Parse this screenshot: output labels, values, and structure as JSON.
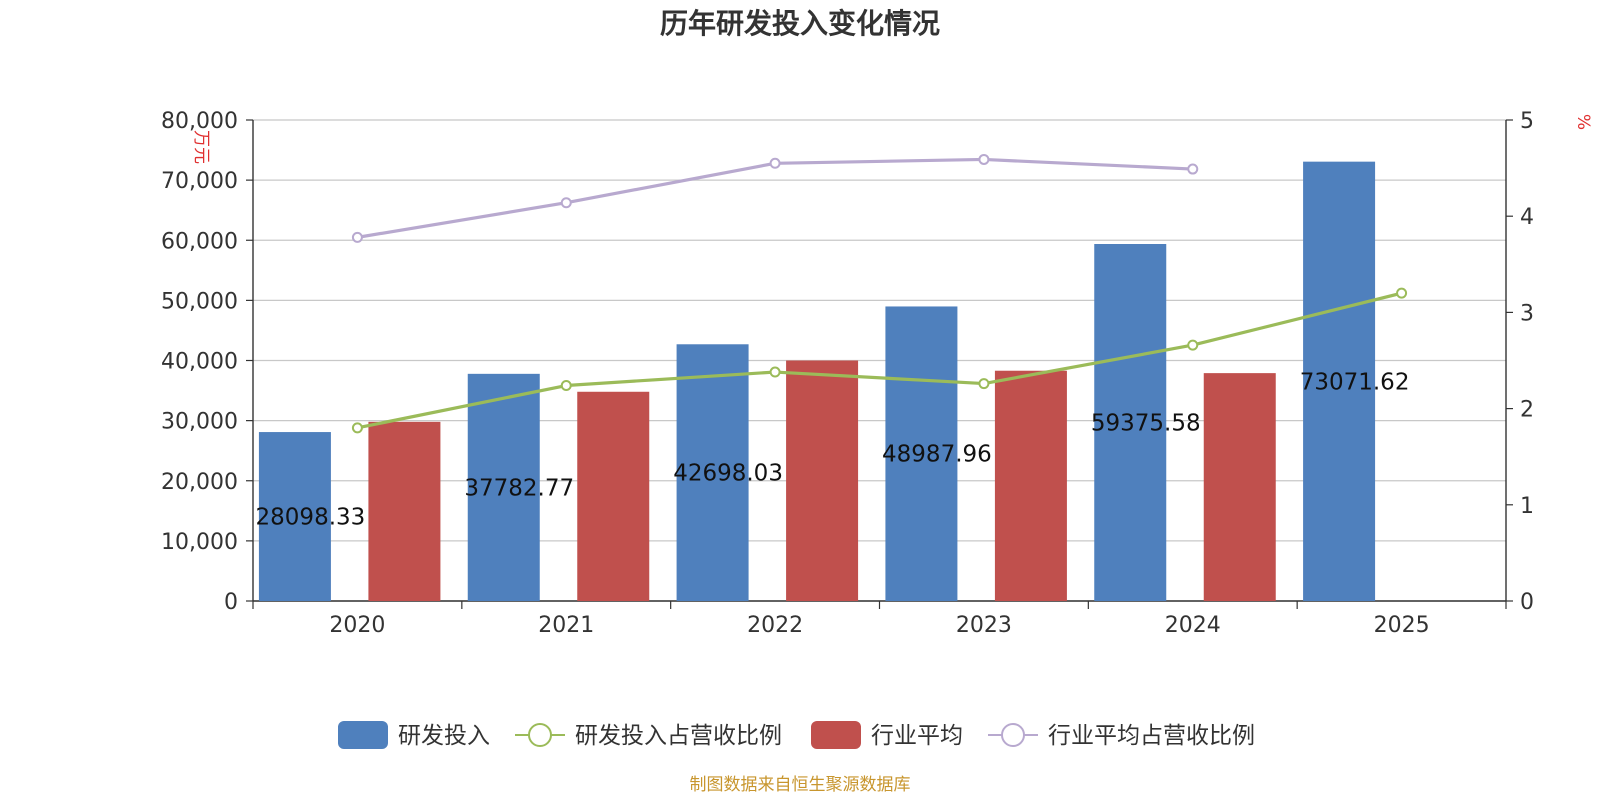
{
  "colors": {
    "rd_bar": "#4f80bd",
    "industry_bar": "#c0504d",
    "rd_ratio_line": "#9bbb59",
    "industry_ratio_line": "#b8a9cf",
    "source_text": "#c8962e",
    "unit_text": "#e03030"
  },
  "chart_data": {
    "type": "bar",
    "title": "历年研发投入变化情况",
    "categories": [
      "2020",
      "2021",
      "2022",
      "2023",
      "2024",
      "2025"
    ],
    "left_axis": {
      "unit": "万元",
      "ylim": [
        0,
        80000
      ],
      "ticks": [
        0,
        10000,
        20000,
        30000,
        40000,
        50000,
        60000,
        70000,
        80000
      ],
      "tick_labels": [
        "0",
        "10,000",
        "20,000",
        "30,000",
        "40,000",
        "50,000",
        "60,000",
        "70,000",
        "80,000"
      ]
    },
    "right_axis": {
      "unit": "%",
      "ylim": [
        0,
        5
      ],
      "ticks": [
        0,
        1,
        2,
        3,
        4,
        5
      ],
      "tick_labels": [
        "0",
        "1",
        "2",
        "3",
        "4",
        "5"
      ]
    },
    "grid": true,
    "legend_position": "bottom-center",
    "series": [
      {
        "name": "研发投入",
        "type": "bar",
        "axis": "left",
        "values": [
          28098.33,
          37782.77,
          42698.03,
          48987.96,
          59375.58,
          73071.62
        ],
        "labels": [
          "28098.33",
          "37782.77",
          "42698.03",
          "48987.96",
          "59375.58",
          "73071.62"
        ]
      },
      {
        "name": "研发投入占营收比例",
        "type": "line",
        "axis": "right",
        "values": [
          1.8,
          2.24,
          2.38,
          2.26,
          2.66,
          3.2
        ]
      },
      {
        "name": "行业平均",
        "type": "bar",
        "axis": "left",
        "values": [
          29800,
          34800,
          40000,
          38300,
          37900,
          null
        ]
      },
      {
        "name": "行业平均占营收比例",
        "type": "line",
        "axis": "right",
        "values": [
          3.78,
          4.14,
          4.55,
          4.59,
          4.49,
          null
        ]
      }
    ],
    "source": "制图数据来自恒生聚源数据库"
  }
}
